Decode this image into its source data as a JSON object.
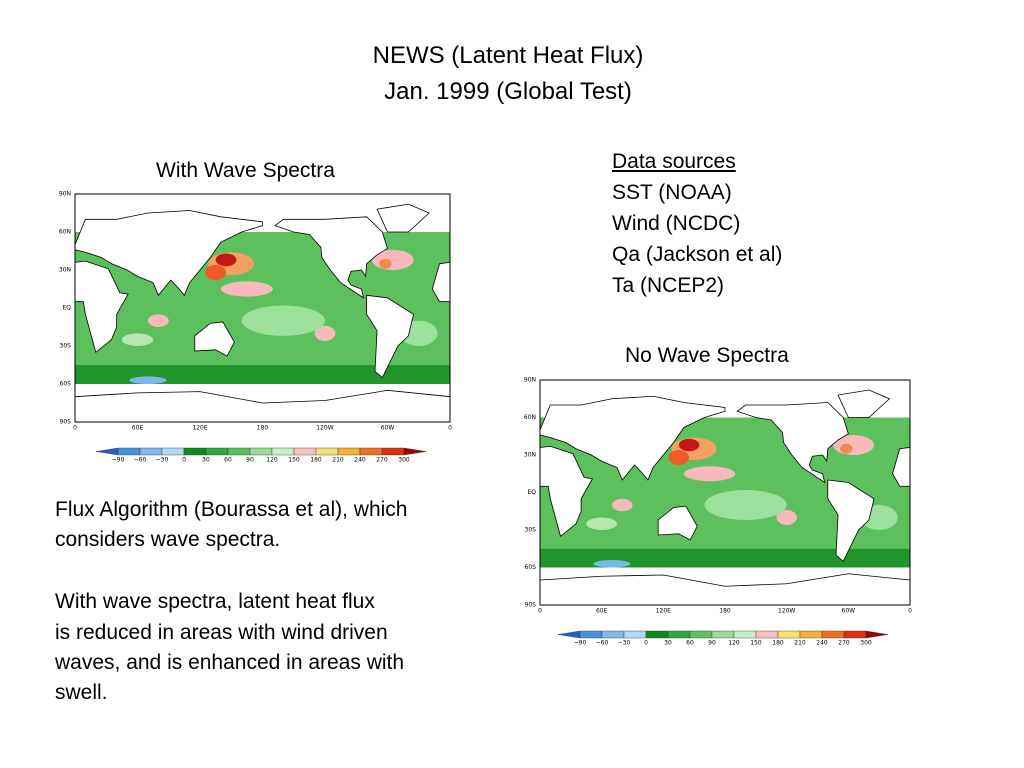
{
  "title": [
    "NEWS (Latent Heat Flux)",
    "Jan. 1999 (Global Test)"
  ],
  "data_sources": {
    "heading": "Data sources",
    "items": [
      "SST (NOAA)",
      "Wind (NCDC)",
      "Qa (Jackson et al)",
      "Ta (NCEP2)"
    ]
  },
  "maps": [
    {
      "label": "With Wave Spectra",
      "lat_labels": [
        "90N",
        "60N",
        "30N",
        "EQ",
        "30S",
        "60S",
        "90S"
      ],
      "lon_labels": [
        "0",
        "60E",
        "120E",
        "180",
        "120W",
        "60W",
        "0"
      ],
      "colorbar_labels": [
        "−90",
        "−60",
        "−30",
        "0",
        "30",
        "60",
        "90",
        "120",
        "150",
        "180",
        "210",
        "240",
        "270",
        "300"
      ]
    },
    {
      "label": "No Wave Spectra",
      "lat_labels": [
        "90N",
        "60N",
        "30N",
        "EQ",
        "30S",
        "60S",
        "90S"
      ],
      "lon_labels": [
        "0",
        "60E",
        "120E",
        "180",
        "120W",
        "60W",
        "0"
      ],
      "colorbar_labels": [
        "−90",
        "−60",
        "−30",
        "0",
        "30",
        "60",
        "90",
        "120",
        "150",
        "180",
        "210",
        "240",
        "270",
        "300"
      ]
    }
  ],
  "description": [
    [
      "Flux Algorithm (Bourassa et al), which",
      "considers wave spectra."
    ],
    [
      "With wave spectra, latent heat flux",
      "is reduced in areas with wind driven",
      "waves, and is enhanced in areas with",
      "swell."
    ]
  ]
}
